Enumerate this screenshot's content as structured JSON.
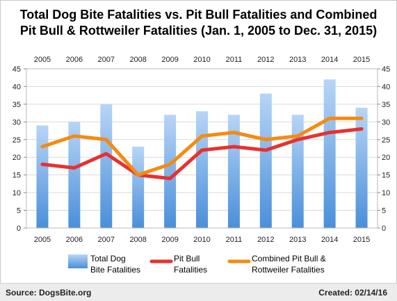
{
  "chart_data": {
    "type": "bar",
    "title_line1": "Total Dog Bite Fatalities vs. Pit Bull Fatalities and Combined",
    "title_line2": "Pit Bull & Rottweiler Fatalities (Jan. 1, 2005 to Dec. 31, 2015)",
    "categories": [
      "2005",
      "2006",
      "2007",
      "2008",
      "2009",
      "2010",
      "2011",
      "2012",
      "2013",
      "2014",
      "2015"
    ],
    "ylim": [
      0,
      45
    ],
    "yticks": [
      0,
      5,
      10,
      15,
      20,
      25,
      30,
      35,
      40,
      45
    ],
    "grid": true,
    "series": [
      {
        "name": "Total Dog Bite Fatalities",
        "kind": "bar",
        "color": "#7fb3ea",
        "values": [
          29,
          30,
          35,
          23,
          32,
          33,
          32,
          38,
          32,
          42,
          34
        ]
      },
      {
        "name": "Pit Bull Fatalities",
        "kind": "line",
        "color": "#e8312f",
        "values": [
          18,
          17,
          21,
          15,
          14,
          22,
          23,
          22,
          25,
          27,
          28
        ]
      },
      {
        "name": "Combined Pit Bull & Rottweiler Fatalities",
        "kind": "line",
        "color": "#f58a12",
        "values": [
          23,
          26,
          25,
          15,
          18,
          26,
          27,
          25,
          26,
          31,
          31
        ]
      }
    ],
    "legend": [
      {
        "line1": "Total Dog",
        "line2": "Bite Fatalities"
      },
      {
        "line1": "Pit Bull",
        "line2": "Fatalities"
      },
      {
        "line1": "Combined Pit Bull &",
        "line2": "Rottweiler Fatalities"
      }
    ],
    "legend_position": "bottom"
  },
  "footer": {
    "source": "Source: DogsBite.org",
    "created": "Created: 02/14/16"
  }
}
